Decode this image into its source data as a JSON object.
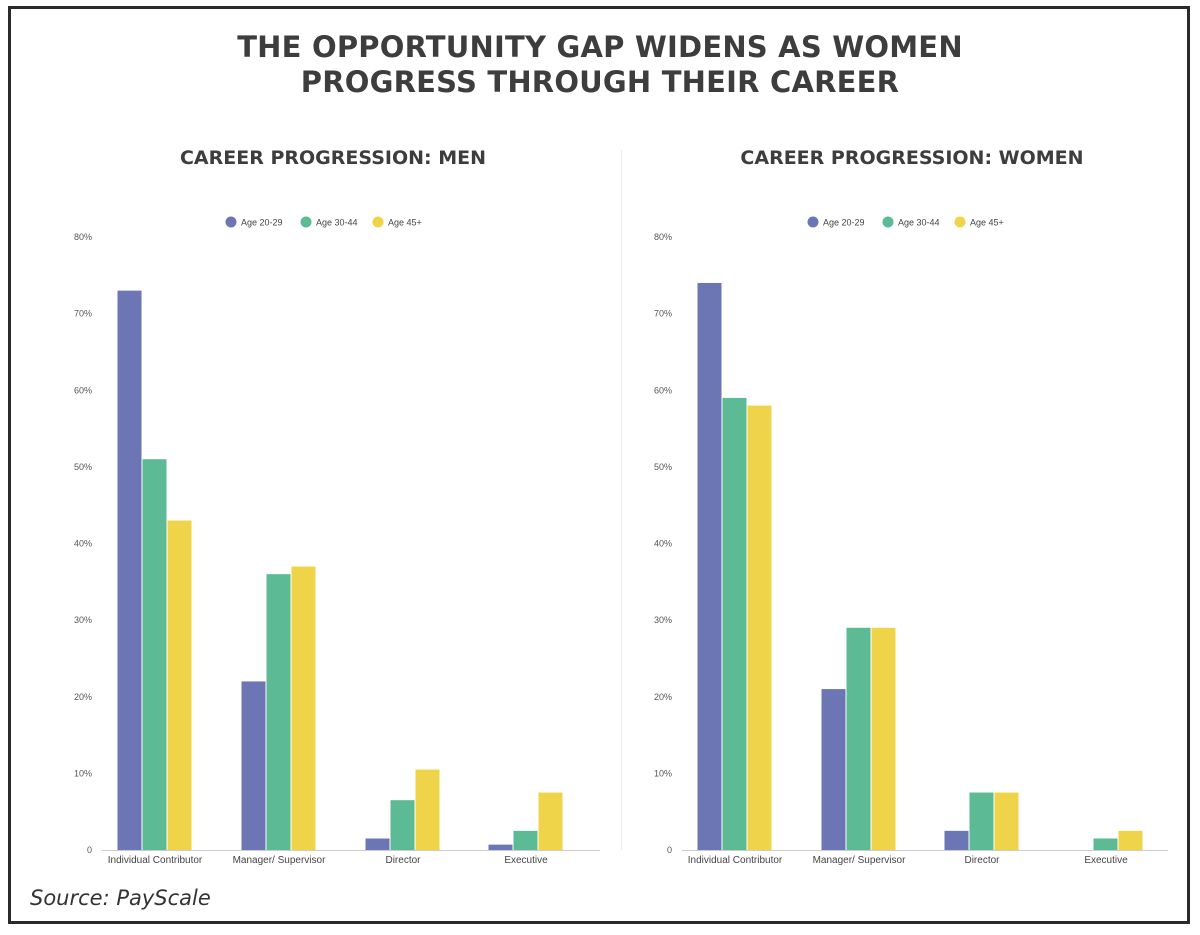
{
  "main_title_lines": [
    "THE OPPORTUNITY GAP WIDENS AS WOMEN",
    "PROGRESS THROUGH THEIR CAREER"
  ],
  "source": "Source: PayScale",
  "colors": {
    "Age 20-29": "#6c76b4",
    "Age 30-44": "#5cba94",
    "Age 45+": "#efd44a"
  },
  "chart_data": [
    {
      "type": "bar",
      "title": "CAREER PROGRESSION: MEN",
      "categories": [
        "Individual Contributor",
        "Manager/ Supervisor",
        "Director",
        "Executive"
      ],
      "series": [
        {
          "name": "Age 20-29",
          "values": [
            73,
            22,
            1.5,
            0.7
          ]
        },
        {
          "name": "Age 30-44",
          "values": [
            51,
            36,
            6.5,
            2.5
          ]
        },
        {
          "name": "Age 45+",
          "values": [
            43,
            37,
            10.5,
            7.5
          ]
        }
      ],
      "yticks": [
        "0",
        "10%",
        "20%",
        "30%",
        "40%",
        "50%",
        "60%",
        "70%",
        "80%"
      ],
      "ylim": [
        0,
        80
      ],
      "legend": "top-center",
      "grid": false
    },
    {
      "type": "bar",
      "title": "CAREER PROGRESSION: WOMEN",
      "categories": [
        "Individual Contributor",
        "Manager/ Supervisor",
        "Director",
        "Executive"
      ],
      "series": [
        {
          "name": "Age 20-29",
          "values": [
            74,
            21,
            2.5,
            0
          ]
        },
        {
          "name": "Age 30-44",
          "values": [
            59,
            29,
            7.5,
            1.5
          ]
        },
        {
          "name": "Age 45+",
          "values": [
            58,
            29,
            7.5,
            2.5
          ]
        }
      ],
      "yticks": [
        "0",
        "10%",
        "20%",
        "30%",
        "40%",
        "50%",
        "60%",
        "70%",
        "80%"
      ],
      "ylim": [
        0,
        80
      ],
      "legend": "top-center",
      "grid": false
    }
  ]
}
